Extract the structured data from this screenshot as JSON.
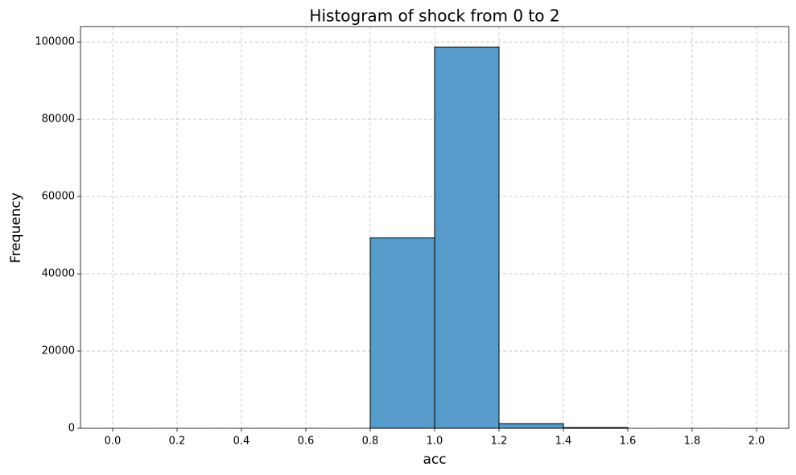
{
  "chart_data": {
    "type": "histogram",
    "title": "Histogram of shock from 0 to 2",
    "x_label": "acc",
    "y_label": "Frequency",
    "bins": [
      0,
      0.2,
      0.4,
      0.6,
      0.8,
      1,
      1.2,
      1.4,
      1.6,
      1.8,
      2
    ],
    "counts": [
      0,
      0,
      0,
      0,
      49300,
      98700,
      1200,
      200,
      0,
      0
    ],
    "color": "#569bc9",
    "edgecolor": "#000000",
    "xlim": [
      -0.1,
      2.1
    ],
    "xticks": [
      {
        "value": 0,
        "label": "0.0"
      },
      0.2,
      0.4,
      0.6,
      0.8,
      {
        "value": 1,
        "label": "1.0"
      },
      1.2,
      1.4,
      1.6,
      1.8,
      {
        "value": 2,
        "label": "2.0"
      }
    ],
    "ylim": [
      0,
      104000
    ],
    "yticks": [
      0,
      20000,
      40000,
      60000,
      80000,
      100000
    ],
    "grid": true
  }
}
